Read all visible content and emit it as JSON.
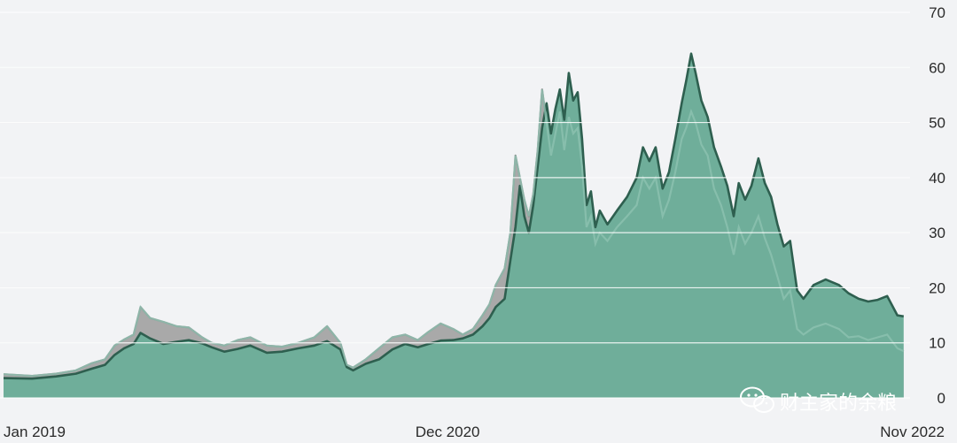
{
  "chart_data": {
    "type": "area",
    "title": "",
    "xlabel": "",
    "ylabel": "",
    "ylim": [
      0,
      70
    ],
    "yticks": [
      0,
      10,
      20,
      30,
      40,
      50,
      60,
      70
    ],
    "xlim": [
      "2019-01-01",
      "2022-11-30"
    ],
    "xticks": [
      {
        "date": "2019-01-01",
        "label": "Jan 2019"
      },
      {
        "date": "2020-12-01",
        "label": "Dec 2020"
      },
      {
        "date": "2022-11-01",
        "label": "Nov 2022"
      }
    ],
    "grid": "horizontal",
    "colors": {
      "series_a_fill": "#6fae9a",
      "series_a_line": "#2e5f4f",
      "series_b_fill": "#a9a9a9",
      "series_b_line": "#8a8a8a",
      "grid": "#ffffff",
      "background": "#f2f3f5"
    },
    "series": [
      {
        "values": [
          [
            "2019-01-01",
            3.6
          ],
          [
            "2019-02-15",
            3.5
          ],
          [
            "2019-03-25",
            3.9
          ],
          [
            "2019-04-25",
            4.4
          ],
          [
            "2019-05-20",
            5.3
          ],
          [
            "2019-06-10",
            6.0
          ],
          [
            "2019-06-25",
            7.8
          ],
          [
            "2019-07-10",
            9.0
          ],
          [
            "2019-07-25",
            9.8
          ],
          [
            "2019-08-05",
            11.8
          ],
          [
            "2019-08-20",
            10.8
          ],
          [
            "2019-09-10",
            9.8
          ],
          [
            "2019-10-01",
            10.2
          ],
          [
            "2019-10-20",
            10.5
          ],
          [
            "2019-11-10",
            9.9
          ],
          [
            "2019-11-25",
            9.2
          ],
          [
            "2019-12-15",
            8.4
          ],
          [
            "2020-01-05",
            8.9
          ],
          [
            "2020-01-25",
            9.5
          ],
          [
            "2020-02-20",
            8.2
          ],
          [
            "2020-03-15",
            8.4
          ],
          [
            "2020-04-10",
            9.0
          ],
          [
            "2020-05-05",
            9.5
          ],
          [
            "2020-05-25",
            10.3
          ],
          [
            "2020-06-15",
            8.8
          ],
          [
            "2020-06-25",
            5.6
          ],
          [
            "2020-07-05",
            5.0
          ],
          [
            "2020-07-25",
            6.2
          ],
          [
            "2020-08-15",
            7.0
          ],
          [
            "2020-09-05",
            8.8
          ],
          [
            "2020-09-25",
            9.8
          ],
          [
            "2020-10-15",
            9.2
          ],
          [
            "2020-11-01",
            9.8
          ],
          [
            "2020-11-20",
            10.4
          ],
          [
            "2020-12-10",
            10.5
          ],
          [
            "2020-12-25",
            10.8
          ],
          [
            "2021-01-10",
            11.5
          ],
          [
            "2021-01-25",
            13.0
          ],
          [
            "2021-02-05",
            14.5
          ],
          [
            "2021-02-15",
            16.5
          ],
          [
            "2021-03-01",
            18.0
          ],
          [
            "2021-03-10",
            25.0
          ],
          [
            "2021-03-18",
            31.0
          ],
          [
            "2021-03-25",
            38.5
          ],
          [
            "2021-04-01",
            33.0
          ],
          [
            "2021-04-08",
            30.0
          ],
          [
            "2021-04-15",
            35.0
          ],
          [
            "2021-04-22",
            42.0
          ],
          [
            "2021-04-29",
            49.0
          ],
          [
            "2021-05-06",
            53.5
          ],
          [
            "2021-05-13",
            48.0
          ],
          [
            "2021-05-20",
            52.5
          ],
          [
            "2021-05-27",
            56.0
          ],
          [
            "2021-06-03",
            50.5
          ],
          [
            "2021-06-10",
            59.0
          ],
          [
            "2021-06-17",
            54.0
          ],
          [
            "2021-06-24",
            55.5
          ],
          [
            "2021-07-01",
            47.0
          ],
          [
            "2021-07-08",
            35.0
          ],
          [
            "2021-07-15",
            37.5
          ],
          [
            "2021-07-22",
            31.0
          ],
          [
            "2021-07-29",
            34.0
          ],
          [
            "2021-08-10",
            31.5
          ],
          [
            "2021-08-25",
            34.0
          ],
          [
            "2021-09-10",
            36.5
          ],
          [
            "2021-09-25",
            40.0
          ],
          [
            "2021-10-05",
            45.5
          ],
          [
            "2021-10-15",
            43.0
          ],
          [
            "2021-10-25",
            45.5
          ],
          [
            "2021-11-05",
            38.0
          ],
          [
            "2021-11-15",
            41.0
          ],
          [
            "2021-11-25",
            47.0
          ],
          [
            "2021-12-05",
            53.5
          ],
          [
            "2021-12-12",
            57.5
          ],
          [
            "2021-12-20",
            62.5
          ],
          [
            "2021-12-27",
            59.0
          ],
          [
            "2022-01-05",
            54.0
          ],
          [
            "2022-01-15",
            51.0
          ],
          [
            "2022-01-25",
            45.5
          ],
          [
            "2022-02-05",
            42.0
          ],
          [
            "2022-02-15",
            38.5
          ],
          [
            "2022-02-25",
            33.0
          ],
          [
            "2022-03-05",
            39.0
          ],
          [
            "2022-03-15",
            36.0
          ],
          [
            "2022-03-25",
            38.5
          ],
          [
            "2022-04-05",
            43.5
          ],
          [
            "2022-04-15",
            39.0
          ],
          [
            "2022-04-25",
            36.5
          ],
          [
            "2022-05-05",
            31.5
          ],
          [
            "2022-05-15",
            27.5
          ],
          [
            "2022-05-25",
            28.5
          ],
          [
            "2022-06-05",
            19.5
          ],
          [
            "2022-06-15",
            18.0
          ],
          [
            "2022-07-01",
            20.5
          ],
          [
            "2022-07-20",
            21.5
          ],
          [
            "2022-08-10",
            20.5
          ],
          [
            "2022-08-25",
            19.0
          ],
          [
            "2022-09-10",
            18.0
          ],
          [
            "2022-09-25",
            17.5
          ],
          [
            "2022-10-10",
            17.8
          ],
          [
            "2022-10-25",
            18.5
          ],
          [
            "2022-11-10",
            15.0
          ],
          [
            "2022-11-20",
            14.8
          ]
        ]
      },
      {
        "values": [
          [
            "2019-01-01",
            4.3
          ],
          [
            "2019-02-15",
            4.0
          ],
          [
            "2019-03-25",
            4.4
          ],
          [
            "2019-04-25",
            5.0
          ],
          [
            "2019-05-20",
            6.3
          ],
          [
            "2019-06-10",
            7.0
          ],
          [
            "2019-06-25",
            9.5
          ],
          [
            "2019-07-10",
            10.6
          ],
          [
            "2019-07-25",
            11.5
          ],
          [
            "2019-08-05",
            16.5
          ],
          [
            "2019-08-20",
            14.5
          ],
          [
            "2019-09-10",
            13.8
          ],
          [
            "2019-10-01",
            13.0
          ],
          [
            "2019-10-20",
            12.8
          ],
          [
            "2019-11-10",
            11.0
          ],
          [
            "2019-11-25",
            10.0
          ],
          [
            "2019-12-15",
            9.5
          ],
          [
            "2020-01-05",
            10.5
          ],
          [
            "2020-01-25",
            11.0
          ],
          [
            "2020-02-20",
            9.5
          ],
          [
            "2020-03-15",
            9.3
          ],
          [
            "2020-04-10",
            10.0
          ],
          [
            "2020-05-05",
            11.0
          ],
          [
            "2020-05-25",
            13.0
          ],
          [
            "2020-06-15",
            10.0
          ],
          [
            "2020-06-25",
            6.0
          ],
          [
            "2020-07-05",
            5.5
          ],
          [
            "2020-07-25",
            7.0
          ],
          [
            "2020-08-15",
            9.0
          ],
          [
            "2020-09-05",
            11.0
          ],
          [
            "2020-09-25",
            11.5
          ],
          [
            "2020-10-15",
            10.5
          ],
          [
            "2020-11-01",
            12.0
          ],
          [
            "2020-11-20",
            13.5
          ],
          [
            "2020-12-10",
            12.5
          ],
          [
            "2020-12-25",
            11.5
          ],
          [
            "2021-01-10",
            12.5
          ],
          [
            "2021-01-25",
            15.0
          ],
          [
            "2021-02-05",
            17.0
          ],
          [
            "2021-02-15",
            20.5
          ],
          [
            "2021-03-01",
            23.5
          ],
          [
            "2021-03-10",
            30.0
          ],
          [
            "2021-03-18",
            44.0
          ],
          [
            "2021-03-25",
            40.0
          ],
          [
            "2021-04-01",
            36.0
          ],
          [
            "2021-04-08",
            33.0
          ],
          [
            "2021-04-15",
            37.0
          ],
          [
            "2021-04-22",
            45.0
          ],
          [
            "2021-04-29",
            56.0
          ],
          [
            "2021-05-06",
            50.0
          ],
          [
            "2021-05-13",
            44.0
          ],
          [
            "2021-05-20",
            48.0
          ],
          [
            "2021-05-27",
            52.0
          ],
          [
            "2021-06-03",
            45.0
          ],
          [
            "2021-06-10",
            51.0
          ],
          [
            "2021-06-17",
            48.0
          ],
          [
            "2021-06-24",
            49.0
          ],
          [
            "2021-07-01",
            42.0
          ],
          [
            "2021-07-08",
            31.0
          ],
          [
            "2021-07-15",
            33.0
          ],
          [
            "2021-07-22",
            28.0
          ],
          [
            "2021-07-29",
            30.0
          ],
          [
            "2021-08-10",
            28.5
          ],
          [
            "2021-08-25",
            31.0
          ],
          [
            "2021-09-10",
            33.0
          ],
          [
            "2021-09-25",
            35.0
          ],
          [
            "2021-10-05",
            40.0
          ],
          [
            "2021-10-15",
            38.0
          ],
          [
            "2021-10-25",
            40.0
          ],
          [
            "2021-11-05",
            33.0
          ],
          [
            "2021-11-15",
            36.0
          ],
          [
            "2021-11-25",
            41.0
          ],
          [
            "2021-12-05",
            47.0
          ],
          [
            "2021-12-12",
            49.0
          ],
          [
            "2021-12-20",
            52.0
          ],
          [
            "2021-12-27",
            50.0
          ],
          [
            "2022-01-05",
            46.0
          ],
          [
            "2022-01-15",
            44.0
          ],
          [
            "2022-01-25",
            38.0
          ],
          [
            "2022-02-05",
            35.0
          ],
          [
            "2022-02-15",
            31.0
          ],
          [
            "2022-02-25",
            26.0
          ],
          [
            "2022-03-05",
            31.0
          ],
          [
            "2022-03-15",
            28.0
          ],
          [
            "2022-03-25",
            30.0
          ],
          [
            "2022-04-05",
            33.0
          ],
          [
            "2022-04-15",
            29.0
          ],
          [
            "2022-04-25",
            26.0
          ],
          [
            "2022-05-05",
            22.0
          ],
          [
            "2022-05-15",
            18.0
          ],
          [
            "2022-05-25",
            19.5
          ],
          [
            "2022-06-05",
            12.5
          ],
          [
            "2022-06-15",
            11.5
          ],
          [
            "2022-07-01",
            12.8
          ],
          [
            "2022-07-20",
            13.5
          ],
          [
            "2022-08-10",
            12.5
          ],
          [
            "2022-08-25",
            11.0
          ],
          [
            "2022-09-10",
            11.2
          ],
          [
            "2022-09-25",
            10.5
          ],
          [
            "2022-10-10",
            11.0
          ],
          [
            "2022-10-25",
            11.5
          ],
          [
            "2022-11-10",
            9.0
          ],
          [
            "2022-11-20",
            8.5
          ]
        ]
      }
    ]
  },
  "watermark": {
    "text": "财主家的余粮",
    "icon": "wechat-icon"
  }
}
